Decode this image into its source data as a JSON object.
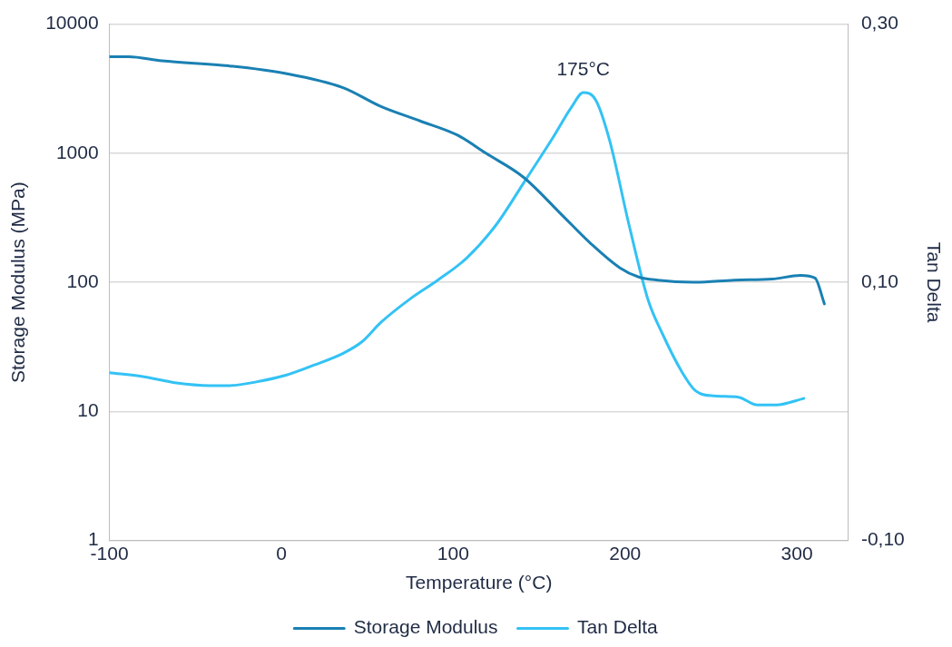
{
  "chart_data": {
    "type": "line",
    "xlabel": "Temperature (°C)",
    "ylabel": "Storage Modulus (MPa)",
    "y2label": "Tan Delta",
    "xlim": [
      -100,
      330
    ],
    "xticks": [
      -100,
      0,
      100,
      200,
      300
    ],
    "ylim": [
      1,
      10000
    ],
    "yticks": [
      1,
      10,
      100,
      1000,
      10000
    ],
    "log": "y",
    "y2lim": [
      -0.1,
      0.3
    ],
    "y2ticks": [
      {
        "value": -0.1,
        "label": "-0,10"
      },
      {
        "value": 0.1,
        "label": "0,10"
      },
      {
        "value": 0.3,
        "label": "0,30"
      }
    ],
    "grid": "y",
    "legend": "bottom",
    "marker": "none",
    "line_style": "solid",
    "annotations": [
      "175°C"
    ],
    "series": [
      {
        "name": "Storage Modulus",
        "color": "#1a80b3",
        "x": [
          -100,
          -89,
          -69.5,
          -30.6,
          2.6,
          35.9,
          58,
          80.7,
          102.5,
          119,
          141,
          163.5,
          180,
          196.8,
          207.9,
          219,
          241,
          263.4,
          285.6,
          302,
          310.5,
          316
        ],
        "values": [
          5600,
          5600,
          5200,
          4750,
          4150,
          3220,
          2300,
          1780,
          1380,
          1000,
          650,
          330,
          200,
          130,
          110,
          104,
          100,
          104,
          106,
          113,
          108,
          68
        ]
      },
      {
        "name": "Tan Delta",
        "color": "#33c2f5",
        "axis": "y2",
        "x": [
          -100,
          -80.6,
          -61,
          -41.7,
          -30.6,
          -14,
          2.6,
          19.3,
          36,
          47,
          58,
          74.8,
          91.4,
          108,
          124.7,
          141,
          158,
          169,
          175.7,
          183,
          191,
          202.4,
          213.5,
          221.8,
          232.9,
          241,
          252,
          266,
          277,
          288,
          304
        ],
        "values": [
          0.03,
          0.027,
          0.022,
          0.02,
          0.02,
          0.023,
          0.028,
          0.036,
          0.045,
          0.054,
          0.069,
          0.087,
          0.102,
          0.119,
          0.144,
          0.177,
          0.212,
          0.236,
          0.247,
          0.241,
          0.21,
          0.144,
          0.086,
          0.06,
          0.031,
          0.016,
          0.012,
          0.011,
          0.005,
          0.005,
          0.01
        ]
      }
    ]
  }
}
